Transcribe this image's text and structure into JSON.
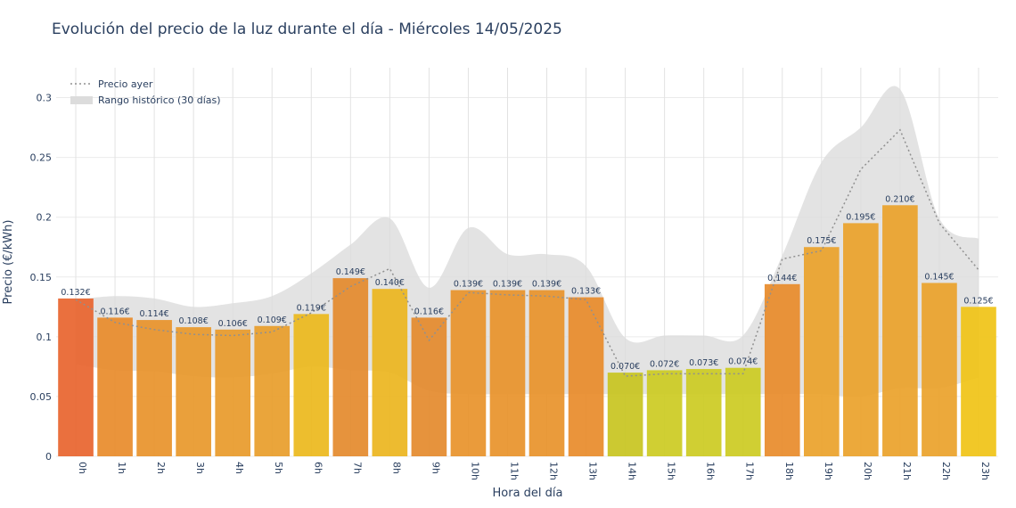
{
  "chart_data": {
    "type": "bar",
    "title": "Evolución del precio de la luz durante el día - Miércoles 14/05/2025",
    "xlabel": "Hora del día",
    "ylabel": "Precio (€/kWh)",
    "ylim": [
      0,
      0.325
    ],
    "yticks": [
      0,
      0.05,
      0.1,
      0.15,
      0.2,
      0.25,
      0.3
    ],
    "ytick_labels": [
      "0",
      "0.05",
      "0.1",
      "0.15",
      "0.2",
      "0.25",
      "0.3"
    ],
    "categories": [
      "0h",
      "1h",
      "2h",
      "3h",
      "4h",
      "5h",
      "6h",
      "7h",
      "8h",
      "9h",
      "10h",
      "11h",
      "12h",
      "13h",
      "14h",
      "15h",
      "16h",
      "17h",
      "18h",
      "19h",
      "20h",
      "21h",
      "22h",
      "23h"
    ],
    "series": [
      {
        "kind": "bar",
        "values": [
          0.132,
          0.116,
          0.114,
          0.108,
          0.106,
          0.109,
          0.119,
          0.149,
          0.14,
          0.116,
          0.139,
          0.139,
          0.139,
          0.133,
          0.07,
          0.072,
          0.073,
          0.074,
          0.144,
          0.175,
          0.195,
          0.21,
          0.145,
          0.125
        ],
        "labels": [
          "0.132€",
          "0.116€",
          "0.114€",
          "0.108€",
          "0.106€",
          "0.109€",
          "0.119€",
          "0.149€",
          "0.140€",
          "0.116€",
          "0.139€",
          "0.139€",
          "0.139€",
          "0.133€",
          "0.070€",
          "0.072€",
          "0.073€",
          "0.074€",
          "0.144€",
          "0.175€",
          "0.195€",
          "0.210€",
          "0.145€",
          "0.125€"
        ],
        "colors": [
          "#e8642e",
          "#e88b2a",
          "#e8922a",
          "#e8982a",
          "#e89a2a",
          "#e89d2a",
          "#ecb81c",
          "#e48a2c",
          "#ecb51e",
          "#e48a2c",
          "#e8922a",
          "#e8922a",
          "#e8922a",
          "#e88b2a",
          "#c8c420",
          "#cccb22",
          "#cccb22",
          "#cccb22",
          "#e88b2a",
          "#eaa22a",
          "#eaa22a",
          "#eaa22a",
          "#eaa22a",
          "#f0c316"
        ]
      },
      {
        "name": "Precio ayer",
        "kind": "line",
        "style": "dotted",
        "color": "#909090",
        "values": [
          0.131,
          0.112,
          0.106,
          0.102,
          0.101,
          0.104,
          0.12,
          0.142,
          0.157,
          0.097,
          0.137,
          0.135,
          0.134,
          0.131,
          0.067,
          0.069,
          0.069,
          0.069,
          0.165,
          0.172,
          0.24,
          0.273,
          0.195,
          0.156
        ]
      },
      {
        "name": "Rango histórico (30 días)",
        "kind": "band",
        "color": "#dcdcdc",
        "lower": [
          0.077,
          0.072,
          0.071,
          0.067,
          0.066,
          0.069,
          0.075,
          0.072,
          0.07,
          0.055,
          0.052,
          0.052,
          0.052,
          0.052,
          0.052,
          0.052,
          0.052,
          0.052,
          0.052,
          0.052,
          0.05,
          0.057,
          0.057,
          0.066
        ],
        "upper": [
          0.131,
          0.134,
          0.132,
          0.125,
          0.128,
          0.134,
          0.153,
          0.177,
          0.199,
          0.141,
          0.191,
          0.169,
          0.169,
          0.159,
          0.099,
          0.101,
          0.101,
          0.101,
          0.168,
          0.246,
          0.275,
          0.307,
          0.199,
          0.182
        ]
      }
    ],
    "legend": {
      "position": "top-left",
      "items": [
        "Precio ayer",
        "Rango histórico (30 días)"
      ]
    },
    "grid": true
  }
}
